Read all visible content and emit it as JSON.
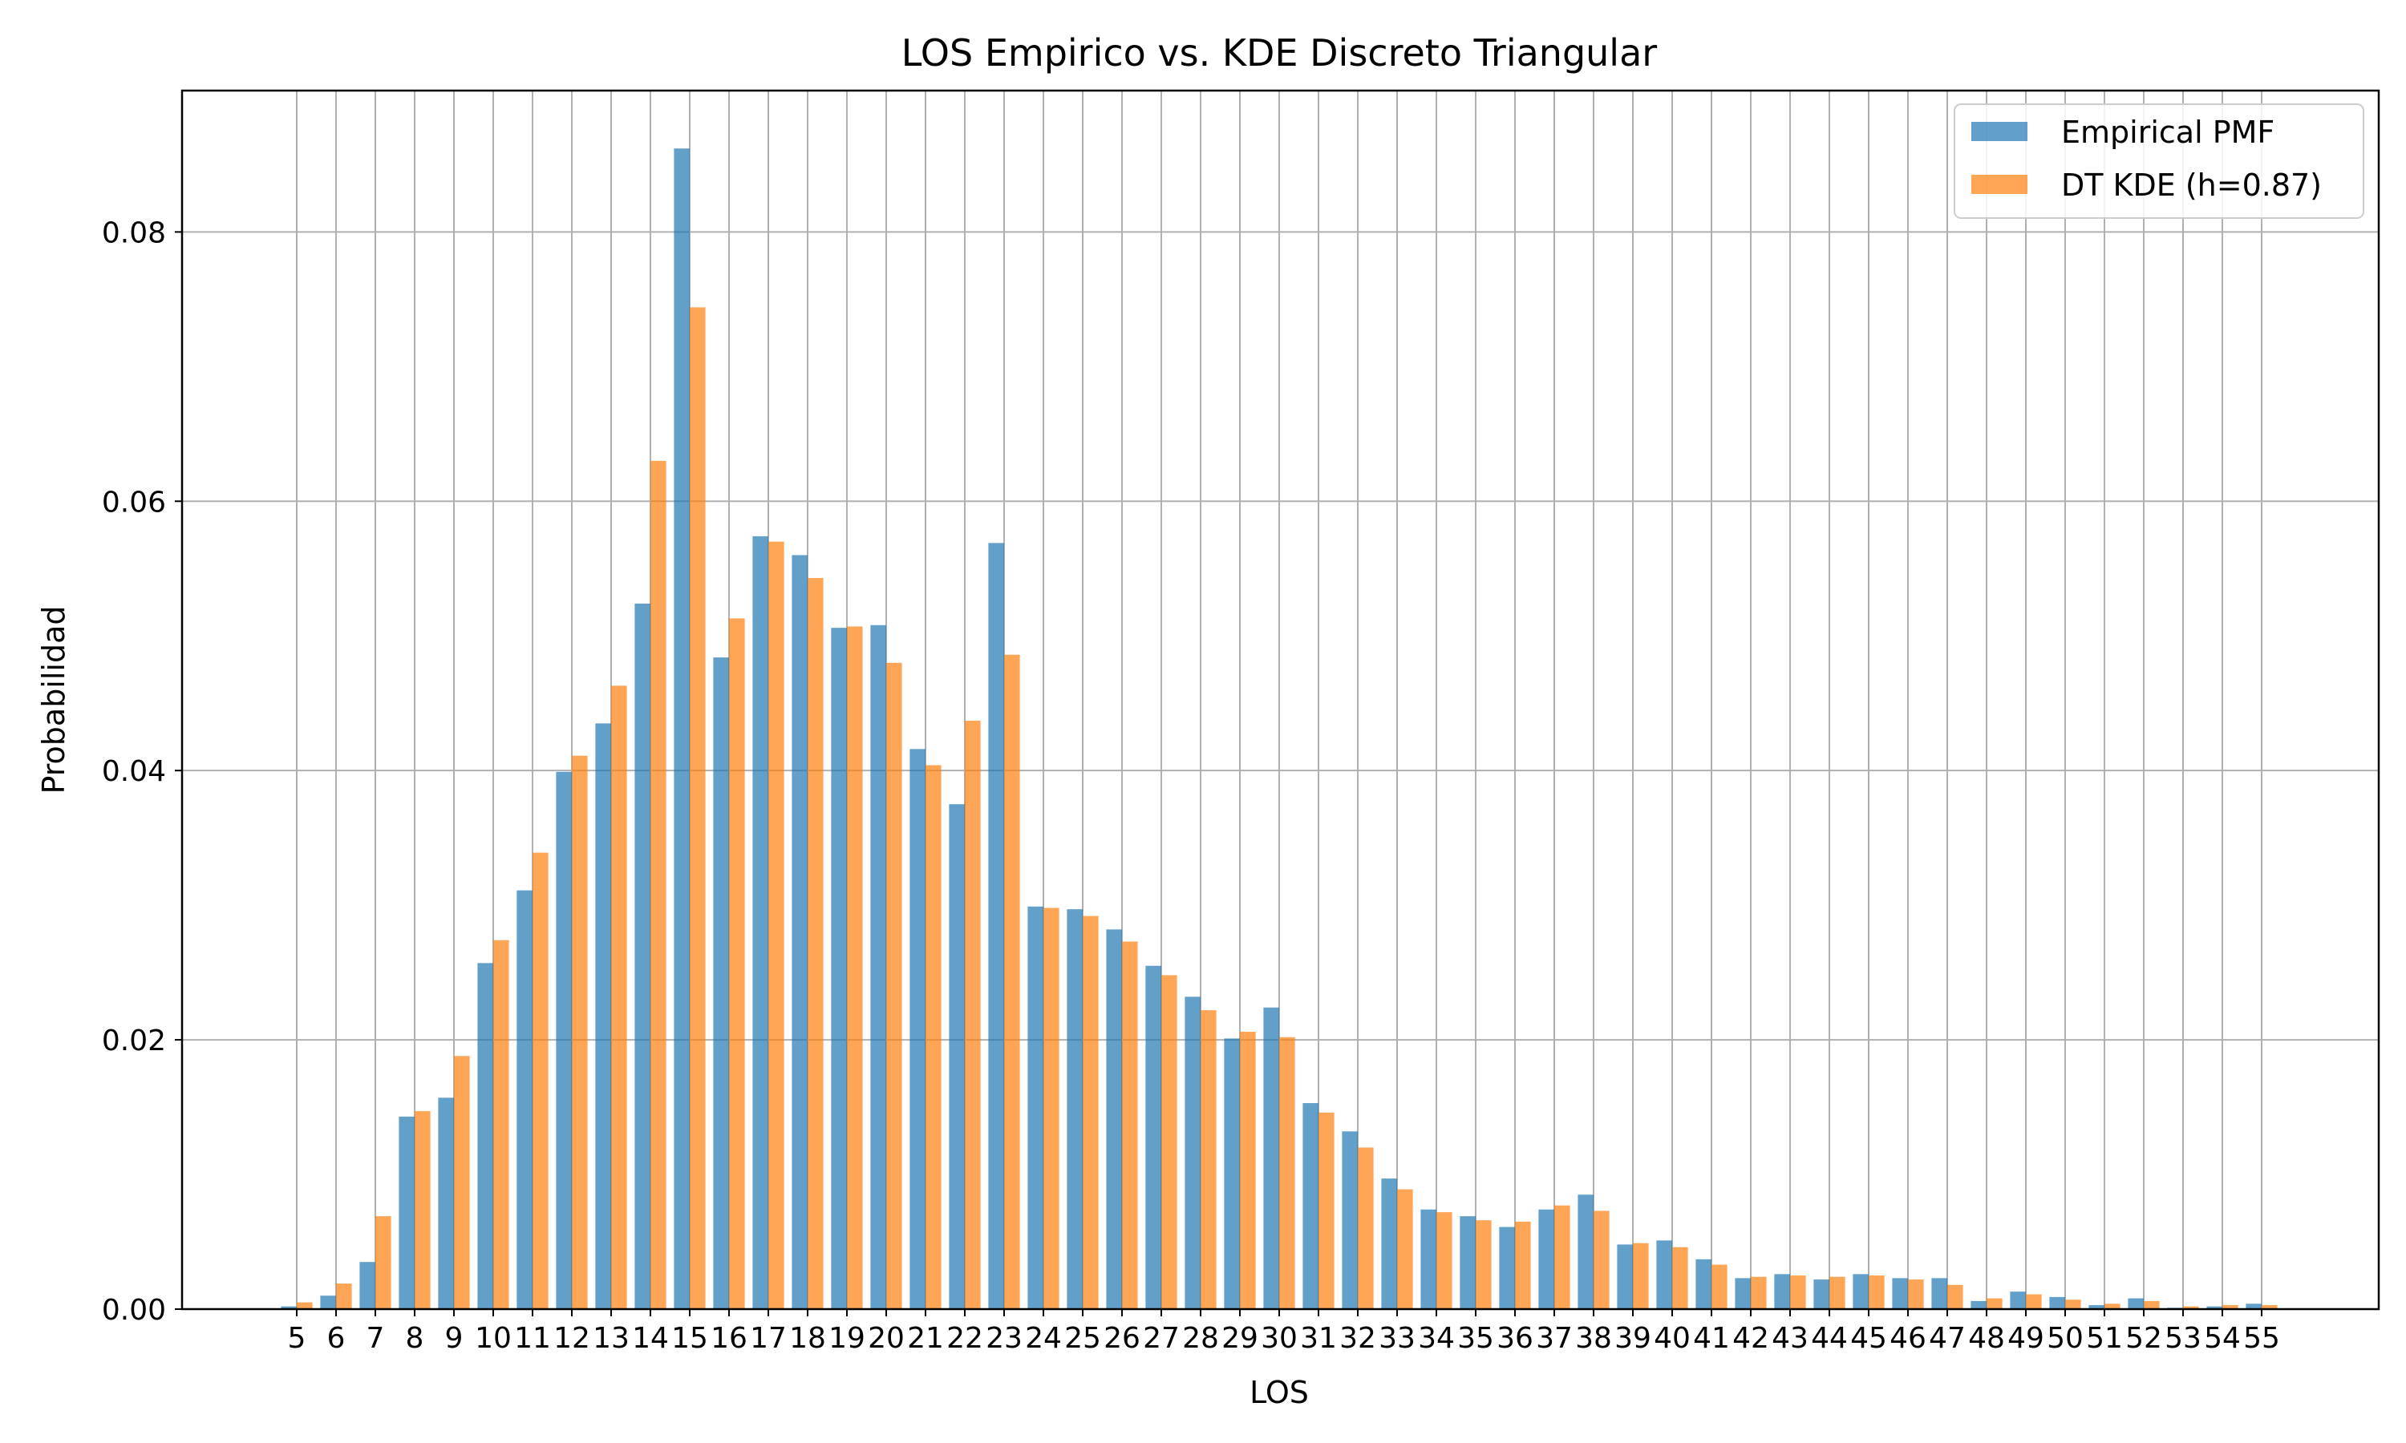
{
  "chart_data": {
    "type": "bar",
    "title": "LOS Empirico vs. KDE Discreto Triangular",
    "xlabel": "LOS",
    "ylabel": "Probabilidad",
    "ylim": [
      0,
      0.0905
    ],
    "yticks": [
      "0.00",
      "0.02",
      "0.04",
      "0.06",
      "0.08"
    ],
    "ytick_values": [
      0,
      0.02,
      0.04,
      0.06,
      0.08
    ],
    "grid": true,
    "legend_position": "top-right",
    "categories": [
      "5",
      "6",
      "7",
      "8",
      "9",
      "10",
      "11",
      "12",
      "13",
      "14",
      "15",
      "16",
      "17",
      "18",
      "19",
      "20",
      "21",
      "22",
      "23",
      "24",
      "25",
      "26",
      "27",
      "28",
      "29",
      "30",
      "31",
      "32",
      "33",
      "34",
      "35",
      "36",
      "37",
      "38",
      "39",
      "40",
      "41",
      "42",
      "43",
      "44",
      "45",
      "46",
      "47",
      "48",
      "49",
      "50",
      "51",
      "52",
      "53",
      "54",
      "55"
    ],
    "series": [
      {
        "name": "Empirical PMF",
        "color": "#1f77b4",
        "values": [
          0.0002,
          0.001,
          0.0035,
          0.0143,
          0.0157,
          0.0257,
          0.0311,
          0.0399,
          0.0435,
          0.0524,
          0.0862,
          0.0484,
          0.0574,
          0.056,
          0.0506,
          0.0508,
          0.0416,
          0.0375,
          0.0569,
          0.0299,
          0.0297,
          0.0282,
          0.0255,
          0.0232,
          0.0201,
          0.0224,
          0.0153,
          0.0132,
          0.0097,
          0.0074,
          0.0069,
          0.0061,
          0.0074,
          0.0085,
          0.0048,
          0.0051,
          0.0037,
          0.0023,
          0.0026,
          0.0022,
          0.0026,
          0.0023,
          0.0023,
          0.0006,
          0.0013,
          0.0009,
          0.0003,
          0.0008,
          0.0001,
          0.0002,
          0.0004
        ]
      },
      {
        "name": "DT KDE (h=0.87)",
        "color": "#ff7f0e",
        "values": [
          0.0005,
          0.0019,
          0.0069,
          0.0147,
          0.0188,
          0.0274,
          0.0339,
          0.0411,
          0.0463,
          0.063,
          0.0744,
          0.0513,
          0.057,
          0.0543,
          0.0507,
          0.048,
          0.0404,
          0.0437,
          0.0486,
          0.0298,
          0.0292,
          0.0273,
          0.0248,
          0.0222,
          0.0206,
          0.0202,
          0.0146,
          0.012,
          0.0089,
          0.0072,
          0.0066,
          0.0065,
          0.0077,
          0.0073,
          0.0049,
          0.0046,
          0.0033,
          0.0024,
          0.0025,
          0.0024,
          0.0025,
          0.0022,
          0.0018,
          0.0008,
          0.0011,
          0.0007,
          0.0004,
          0.0006,
          0.0002,
          0.0003,
          0.0003
        ]
      }
    ]
  }
}
